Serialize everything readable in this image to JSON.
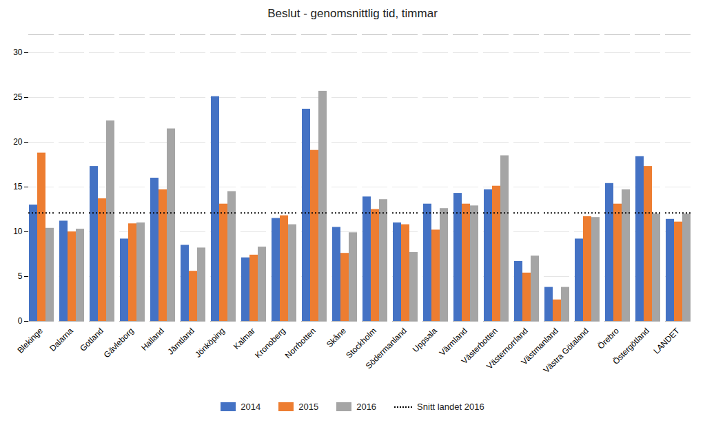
{
  "chart_data": {
    "type": "bar",
    "title": "Beslut - genomsnittlig tid, timmar",
    "categories": [
      "Blekinge",
      "Dalarna",
      "Gotland",
      "Gävleborg",
      "Halland",
      "Jämtland",
      "Jönköping",
      "Kalmar",
      "Kronoberg",
      "Norrbotten",
      "Skåne",
      "Stockholm",
      "Södermanland",
      "Uppsala",
      "Värmland",
      "Västerbotten",
      "Västernorrland",
      "Västmanland",
      "Västra Götaland",
      "Örebro",
      "Östergötland",
      "LANDET"
    ],
    "series": [
      {
        "name": "2014",
        "color": "#4472C4",
        "values": [
          13.0,
          11.2,
          17.3,
          9.2,
          16.0,
          8.5,
          25.1,
          7.1,
          11.5,
          23.7,
          10.5,
          13.9,
          11.0,
          13.1,
          14.3,
          14.7,
          6.7,
          3.8,
          9.2,
          15.4,
          18.4,
          11.4
        ]
      },
      {
        "name": "2015",
        "color": "#ED7D31",
        "values": [
          18.8,
          10.0,
          13.7,
          10.9,
          14.7,
          5.6,
          13.1,
          7.4,
          11.8,
          19.1,
          7.6,
          12.5,
          10.8,
          10.2,
          13.1,
          15.1,
          5.4,
          2.4,
          11.7,
          13.1,
          17.3,
          11.1
        ]
      },
      {
        "name": "2016",
        "color": "#A5A5A5",
        "values": [
          10.4,
          10.3,
          22.4,
          11.0,
          21.5,
          8.2,
          14.5,
          8.3,
          10.8,
          25.7,
          9.9,
          13.6,
          7.7,
          12.6,
          12.9,
          18.5,
          7.3,
          3.8,
          11.6,
          14.7,
          12.0,
          12.0
        ]
      }
    ],
    "reference_lines": [
      {
        "name": "Snitt landet 2016",
        "value": 12.1,
        "color": "#000000",
        "line_style": "dotted"
      }
    ],
    "ylim": [
      0,
      32
    ],
    "yticks": [
      0,
      5,
      10,
      15,
      20,
      25,
      30
    ],
    "grid": true,
    "legend": "bottom"
  }
}
